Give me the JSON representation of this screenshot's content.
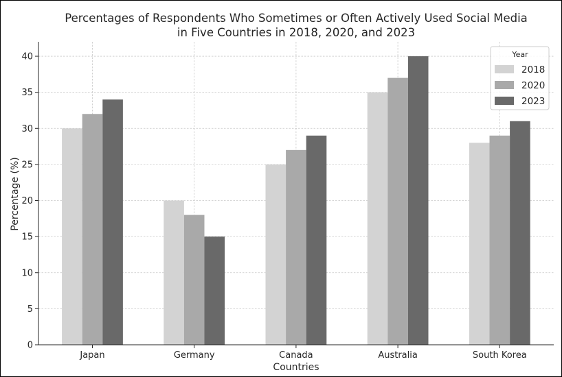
{
  "chart_data": {
    "type": "bar",
    "title": [
      "Percentages of Respondents Who Sometimes or Often Actively Used Social Media",
      "in Five Countries in 2018, 2020, and 2023"
    ],
    "xlabel": "Countries",
    "ylabel": "Percentage (%)",
    "ylim": [
      0,
      42
    ],
    "yticks": [
      0,
      5,
      10,
      15,
      20,
      25,
      30,
      35,
      40
    ],
    "grid": true,
    "legend": {
      "title": "Year",
      "placement": "top-right"
    },
    "categories": [
      "Japan",
      "Germany",
      "Canada",
      "Australia",
      "South Korea"
    ],
    "series": [
      {
        "name": "2018",
        "color": "#d3d3d3",
        "values": [
          30,
          20,
          25,
          35,
          28
        ]
      },
      {
        "name": "2020",
        "color": "#a9a9a9",
        "values": [
          32,
          18,
          27,
          37,
          29
        ]
      },
      {
        "name": "2023",
        "color": "#696969",
        "values": [
          34,
          15,
          29,
          40,
          31
        ]
      }
    ]
  }
}
